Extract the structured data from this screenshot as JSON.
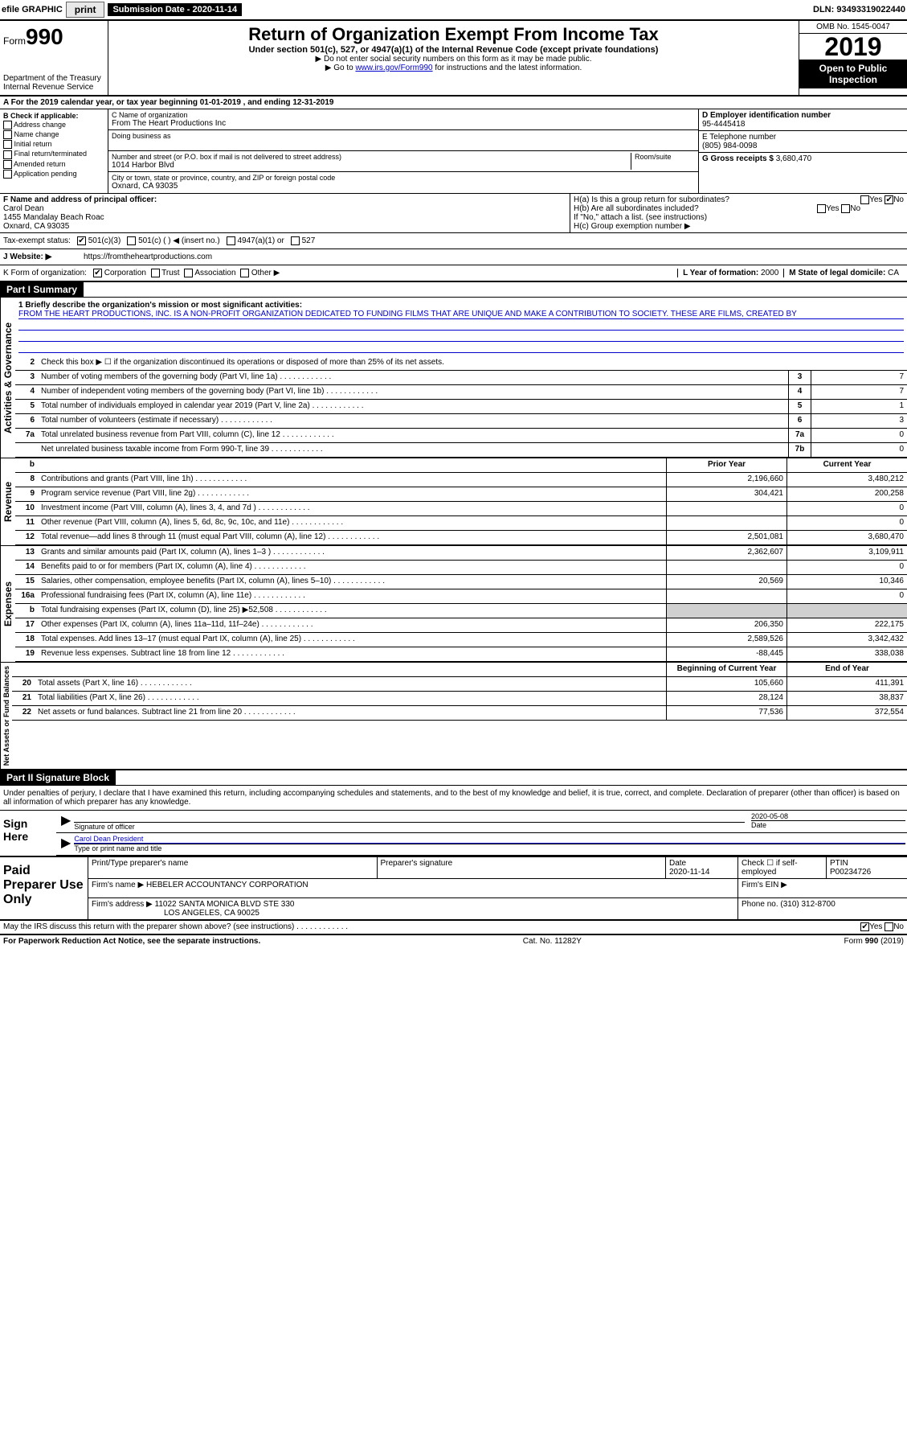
{
  "top": {
    "efile_label": "efile GRAPHIC",
    "print_btn": "print",
    "sub_date_label": "Submission Date - ",
    "sub_date": "2020-11-14",
    "dln_label": "DLN: ",
    "dln": "93493319022440"
  },
  "header": {
    "form_word": "Form",
    "form_num": "990",
    "dept": "Department of the Treasury\nInternal Revenue Service",
    "title": "Return of Organization Exempt From Income Tax",
    "sub": "Under section 501(c), 527, or 4947(a)(1) of the Internal Revenue Code (except private foundations)",
    "note1": "▶ Do not enter social security numbers on this form as it may be made public.",
    "note2_pre": "▶ Go to ",
    "note2_link": "www.irs.gov/Form990",
    "note2_post": " for instructions and the latest information.",
    "omb": "OMB No. 1545-0047",
    "year": "2019",
    "inspect": "Open to Public Inspection"
  },
  "row_a": "A For the 2019 calendar year, or tax year beginning 01-01-2019    , and ending 12-31-2019",
  "col_b": {
    "title": "B Check if applicable:",
    "items": [
      "Address change",
      "Name change",
      "Initial return",
      "Final return/terminated",
      "Amended return",
      "Application pending"
    ]
  },
  "col_c": {
    "name_label": "C Name of organization",
    "name": "From The Heart Productions Inc",
    "dba_label": "Doing business as",
    "street_label": "Number and street (or P.O. box if mail is not delivered to street address)",
    "room_label": "Room/suite",
    "street": "1014 Harbor Blvd",
    "city_label": "City or town, state or province, country, and ZIP or foreign postal code",
    "city": "Oxnard, CA  93035"
  },
  "col_d": {
    "ein_label": "D Employer identification number",
    "ein": "95-4445418",
    "phone_label": "E Telephone number",
    "phone": "(805) 984-0098",
    "gross_label": "G Gross receipts $ ",
    "gross": "3,680,470"
  },
  "block_f": {
    "label": "F Name and address of principal officer:",
    "name": "Carol Dean",
    "addr1": "1455 Mandalay Beach Roac",
    "addr2": "Oxnard, CA  93035"
  },
  "block_h": {
    "ha": "H(a)  Is this a group return for subordinates?",
    "hb": "H(b)  Are all subordinates included?",
    "hb_note": "If \"No,\" attach a list. (see instructions)",
    "hc": "H(c)  Group exemption number ▶",
    "yes": "Yes",
    "no": "No"
  },
  "tax_status": {
    "label": "Tax-exempt status:",
    "opts": [
      "501(c)(3)",
      "501(c) (  ) ◀ (insert no.)",
      "4947(a)(1) or",
      "527"
    ]
  },
  "row_j": {
    "label": "J  Website: ▶",
    "url": "https://fromtheheartproductions.com"
  },
  "row_k": {
    "label": "K Form of organization:",
    "opts": [
      "Corporation",
      "Trust",
      "Association",
      "Other ▶"
    ],
    "l_label": "L Year of formation: ",
    "l_val": "2000",
    "m_label": "M State of legal domicile: ",
    "m_val": "CA"
  },
  "part1": {
    "hdr": "Part I        Summary",
    "q1_label": "1  Briefly describe the organization's mission or most significant activities:",
    "q1_text": "FROM THE HEART PRODUCTIONS, INC. IS A NON-PROFIT ORGANIZATION DEDICATED TO FUNDING FILMS THAT ARE UNIQUE AND MAKE A CONTRIBUTION TO SOCIETY. THESE ARE FILMS, CREATED BY",
    "q2": "Check this box ▶ ☐  if the organization discontinued its operations or disposed of more than 25% of its net assets.",
    "side_ag": "Activities & Governance",
    "side_rev": "Revenue",
    "side_exp": "Expenses",
    "side_na": "Net Assets or Fund Balances",
    "lines_ag": [
      {
        "n": "3",
        "d": "Number of voting members of the governing body (Part VI, line 1a)",
        "b": "3",
        "v": "7"
      },
      {
        "n": "4",
        "d": "Number of independent voting members of the governing body (Part VI, line 1b)",
        "b": "4",
        "v": "7"
      },
      {
        "n": "5",
        "d": "Total number of individuals employed in calendar year 2019 (Part V, line 2a)",
        "b": "5",
        "v": "1"
      },
      {
        "n": "6",
        "d": "Total number of volunteers (estimate if necessary)",
        "b": "6",
        "v": "3"
      },
      {
        "n": "7a",
        "d": "Total unrelated business revenue from Part VIII, column (C), line 12",
        "b": "7a",
        "v": "0"
      },
      {
        "n": "",
        "d": "Net unrelated business taxable income from Form 990-T, line 39",
        "b": "7b",
        "v": "0"
      }
    ],
    "prior_label": "Prior Year",
    "current_label": "Current Year",
    "lines_rev": [
      {
        "n": "8",
        "d": "Contributions and grants (Part VIII, line 1h)",
        "p": "2,196,660",
        "c": "3,480,212"
      },
      {
        "n": "9",
        "d": "Program service revenue (Part VIII, line 2g)",
        "p": "304,421",
        "c": "200,258"
      },
      {
        "n": "10",
        "d": "Investment income (Part VIII, column (A), lines 3, 4, and 7d )",
        "p": "",
        "c": "0"
      },
      {
        "n": "11",
        "d": "Other revenue (Part VIII, column (A), lines 5, 6d, 8c, 9c, 10c, and 11e)",
        "p": "",
        "c": "0"
      },
      {
        "n": "12",
        "d": "Total revenue—add lines 8 through 11 (must equal Part VIII, column (A), line 12)",
        "p": "2,501,081",
        "c": "3,680,470"
      }
    ],
    "lines_exp": [
      {
        "n": "13",
        "d": "Grants and similar amounts paid (Part IX, column (A), lines 1–3 )",
        "p": "2,362,607",
        "c": "3,109,911"
      },
      {
        "n": "14",
        "d": "Benefits paid to or for members (Part IX, column (A), line 4)",
        "p": "",
        "c": "0"
      },
      {
        "n": "15",
        "d": "Salaries, other compensation, employee benefits (Part IX, column (A), lines 5–10)",
        "p": "20,569",
        "c": "10,346"
      },
      {
        "n": "16a",
        "d": "Professional fundraising fees (Part IX, column (A), line 11e)",
        "p": "",
        "c": "0"
      },
      {
        "n": "b",
        "d": "Total fundraising expenses (Part IX, column (D), line 25) ▶52,508",
        "p": "shaded",
        "c": "shaded"
      },
      {
        "n": "17",
        "d": "Other expenses (Part IX, column (A), lines 11a–11d, 11f–24e)",
        "p": "206,350",
        "c": "222,175"
      },
      {
        "n": "18",
        "d": "Total expenses. Add lines 13–17 (must equal Part IX, column (A), line 25)",
        "p": "2,589,526",
        "c": "3,342,432"
      },
      {
        "n": "19",
        "d": "Revenue less expenses. Subtract line 18 from line 12",
        "p": "-88,445",
        "c": "338,038"
      }
    ],
    "begin_label": "Beginning of Current Year",
    "end_label": "End of Year",
    "lines_na": [
      {
        "n": "20",
        "d": "Total assets (Part X, line 16)",
        "p": "105,660",
        "c": "411,391"
      },
      {
        "n": "21",
        "d": "Total liabilities (Part X, line 26)",
        "p": "28,124",
        "c": "38,837"
      },
      {
        "n": "22",
        "d": "Net assets or fund balances. Subtract line 21 from line 20",
        "p": "77,536",
        "c": "372,554"
      }
    ]
  },
  "part2": {
    "hdr": "Part II        Signature Block",
    "declare": "Under penalties of perjury, I declare that I have examined this return, including accompanying schedules and statements, and to the best of my knowledge and belief, it is true, correct, and complete. Declaration of preparer (other than officer) is based on all information of which preparer has any knowledge.",
    "sign_here": "Sign Here",
    "sig_officer_label": "Signature of officer",
    "sig_date_label": "Date",
    "sig_date": "2020-05-08",
    "sig_name": "Carol Dean  President",
    "sig_name_label": "Type or print name and title",
    "paid": "Paid Preparer Use Only",
    "prep_name_label": "Print/Type preparer's name",
    "prep_sig_label": "Preparer's signature",
    "prep_date_label": "Date",
    "prep_date": "2020-11-14",
    "prep_check": "Check ☐ if self-employed",
    "ptin_label": "PTIN",
    "ptin": "P00234726",
    "firm_name_label": "Firm's name   ▶",
    "firm_name": "HEBELER ACCOUNTANCY CORPORATION",
    "firm_ein_label": "Firm's EIN ▶",
    "firm_addr_label": "Firm's address ▶",
    "firm_addr1": "11022 SANTA MONICA BLVD STE 330",
    "firm_addr2": "LOS ANGELES, CA  90025",
    "firm_phone_label": "Phone no. ",
    "firm_phone": "(310) 312-8700",
    "discuss": "May the IRS discuss this return with the preparer shown above? (see instructions)"
  },
  "footer": {
    "left": "For Paperwork Reduction Act Notice, see the separate instructions.",
    "mid": "Cat. No. 11282Y",
    "right": "Form 990 (2019)"
  }
}
